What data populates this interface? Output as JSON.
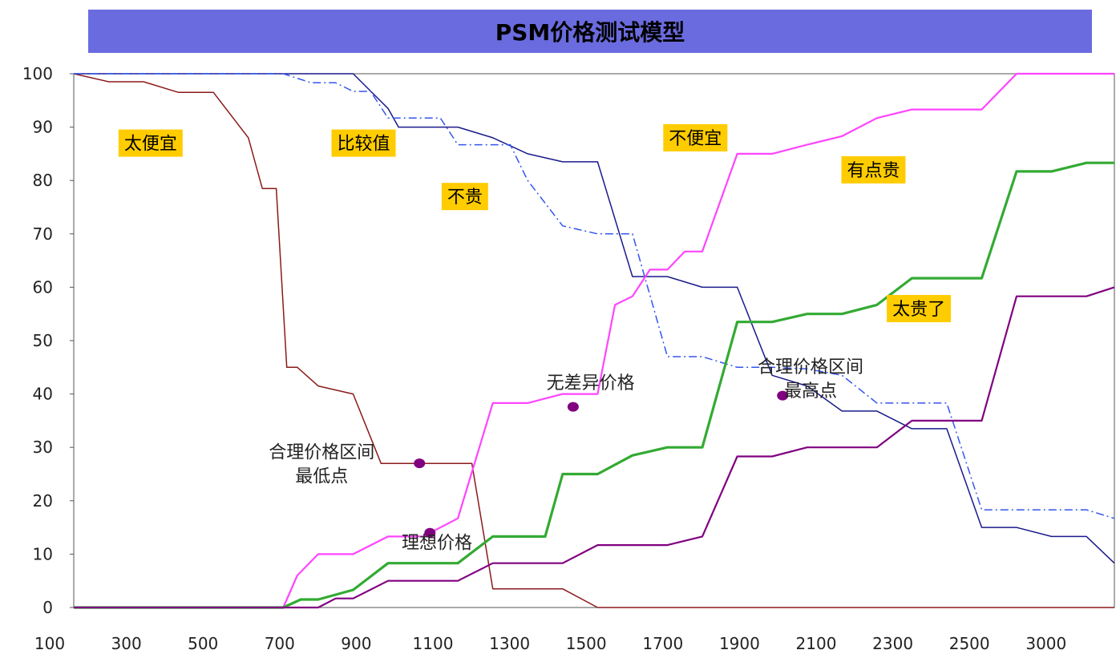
{
  "chart_data": {
    "type": "line",
    "title": "PSM价格测试模型",
    "x_ticks": [
      "100",
      "300",
      "500",
      "700",
      "900",
      "1100",
      "1300",
      "1500",
      "1700",
      "1900",
      "2100",
      "2300",
      "2500",
      "3000"
    ],
    "ylim": [
      0,
      100
    ],
    "y_ticks": [
      0,
      10,
      20,
      30,
      40,
      50,
      60,
      70,
      80,
      90,
      100
    ],
    "colors": {
      "too_cheap": "#8b1a1a",
      "cheap": "#1a1a8c",
      "not_expensive": "#3355ee",
      "not_cheap": "#ff44ff",
      "expensive": "#33aa33",
      "too_expensive": "#800080",
      "marker": "#800080",
      "label_bg": "#ffcc00",
      "title_bg": "#6b6be0"
    },
    "series": [
      {
        "name": "太便宜",
        "key": "too_cheap",
        "style": "solid",
        "width": 1.5,
        "x": [
          0,
          1,
          2,
          3,
          4,
          5,
          5.4,
          5.8,
          6.1,
          6.4,
          7,
          8,
          8.8,
          9.3,
          10,
          11.4,
          12,
          13,
          14,
          15,
          16,
          17,
          18,
          19,
          20,
          21,
          22,
          23,
          24,
          25,
          26,
          27,
          28,
          29,
          29.8
        ],
        "y": [
          100,
          98.5,
          98.5,
          96.5,
          96.5,
          88,
          78.5,
          78.5,
          45,
          45,
          41.5,
          40,
          27,
          27,
          27,
          27,
          3.5,
          3.5,
          3.5,
          0,
          0,
          0,
          0,
          0,
          0,
          0,
          0,
          0,
          0,
          0,
          0,
          0,
          0,
          0,
          0
        ]
      },
      {
        "name": "比较值",
        "key": "cheap",
        "style": "solid",
        "width": 1.5,
        "x": [
          0,
          4,
          5,
          6,
          7,
          8,
          9,
          9.3,
          10,
          10.5,
          11,
          12,
          13,
          14,
          15,
          16,
          17,
          18,
          19,
          20,
          21,
          22,
          23,
          24,
          25,
          26,
          27,
          28,
          29,
          29.8
        ],
        "y": [
          100,
          100,
          100,
          100,
          100,
          100,
          93.5,
          90,
          90,
          90,
          90,
          88,
          85,
          83.5,
          83.5,
          62,
          62,
          60,
          60,
          43.5,
          41.5,
          36.8,
          36.8,
          33.5,
          33.5,
          15,
          15,
          13.3,
          13.3,
          8.3
        ]
      },
      {
        "name": "不贵",
        "key": "not_expensive",
        "style": "dashdot",
        "width": 1.5,
        "x": [
          0,
          5,
          5.8,
          6,
          6.8,
          7.5,
          8,
          8.5,
          9,
          9.3,
          10,
          10.5,
          11,
          11.5,
          12,
          12.5,
          13,
          14,
          15,
          16,
          17,
          18,
          19,
          20,
          21,
          22,
          23,
          24,
          25,
          26,
          27,
          28,
          29,
          29.8
        ],
        "y": [
          100,
          100,
          100,
          100,
          98.3,
          98.3,
          96.7,
          96.7,
          91.7,
          91.7,
          91.7,
          91.7,
          86.7,
          86.7,
          86.7,
          86.7,
          80,
          71.5,
          70,
          70,
          47,
          47,
          45,
          45,
          44.7,
          43.5,
          38.3,
          38.3,
          38.3,
          18.3,
          18.3,
          18.3,
          18.3,
          16.7
        ]
      },
      {
        "name": "不便宜",
        "key": "not_cheap",
        "style": "solid",
        "width": 2.2,
        "x": [
          0,
          4,
          5,
          5.2,
          5.6,
          6,
          6.4,
          7,
          7.5,
          8,
          9,
          10,
          11,
          12,
          13,
          14,
          15,
          15.5,
          16,
          16.5,
          17,
          17.5,
          18,
          19,
          20,
          21,
          22,
          23,
          24,
          25,
          26,
          27,
          28,
          29,
          29.8
        ],
        "y": [
          0,
          0,
          0,
          0,
          0,
          0,
          6,
          10,
          10,
          10,
          13.3,
          13.3,
          16.7,
          38.3,
          38.3,
          40,
          40,
          56.7,
          58.3,
          63.3,
          63.3,
          66.7,
          66.7,
          85,
          85,
          86.7,
          88.3,
          91.7,
          93.3,
          93.3,
          93.3,
          100,
          100,
          100,
          100
        ]
      },
      {
        "name": "有点贵",
        "key": "expensive",
        "style": "solid",
        "width": 3.2,
        "x": [
          0,
          4,
          5,
          6,
          6.5,
          7,
          8,
          9,
          10,
          11,
          12,
          13,
          13.5,
          14,
          15,
          16,
          17,
          18,
          19,
          20,
          21,
          22,
          23,
          24,
          25,
          26,
          27,
          28,
          29,
          29.8
        ],
        "y": [
          0,
          0,
          0,
          0,
          1.5,
          1.5,
          3.3,
          8.3,
          8.3,
          8.3,
          13.3,
          13.3,
          13.3,
          25,
          25,
          28.5,
          30,
          30,
          53.5,
          53.5,
          55,
          55,
          56.7,
          61.7,
          61.7,
          61.7,
          81.7,
          81.7,
          83.3,
          83.3
        ]
      },
      {
        "name": "太贵了",
        "key": "too_expensive",
        "style": "solid",
        "width": 2.2,
        "x": [
          0,
          4,
          5,
          6,
          6.5,
          7,
          7.5,
          8,
          9,
          10,
          11,
          12,
          13,
          14,
          15,
          16,
          17,
          18,
          19,
          20,
          21,
          22,
          23,
          24,
          25,
          26,
          27,
          28,
          29,
          29.8
        ],
        "y": [
          0,
          0,
          0,
          0,
          0,
          0,
          1.7,
          1.7,
          5,
          5,
          5,
          8.3,
          8.3,
          8.3,
          11.7,
          11.7,
          11.7,
          13.3,
          28.3,
          28.3,
          30,
          30,
          30,
          35,
          35,
          35,
          58.3,
          58.3,
          58.3,
          60
        ]
      }
    ],
    "labels": [
      {
        "text": "太便宜",
        "x": 2.2,
        "y": 87
      },
      {
        "text": "比较值",
        "x": 8.3,
        "y": 87
      },
      {
        "text": "不贵",
        "x": 11.2,
        "y": 77
      },
      {
        "text": "不便宜",
        "x": 17.8,
        "y": 88
      },
      {
        "text": "有点贵",
        "x": 22.9,
        "y": 82
      },
      {
        "text": "太贵了",
        "x": 24.2,
        "y": 56
      }
    ],
    "markers": [
      {
        "x": 9.9,
        "y": 27
      },
      {
        "x": 10.2,
        "y": 14
      },
      {
        "x": 14.3,
        "y": 37.6
      },
      {
        "x": 20.3,
        "y": 39.7
      }
    ],
    "annotations": [
      {
        "lines": [
          "合理价格区间",
          "最低点"
        ],
        "x": 7.1,
        "y": 28
      },
      {
        "lines": [
          "理想价格"
        ],
        "x": 10.4,
        "y": 11
      },
      {
        "lines": [
          "无差异价格"
        ],
        "x": 14.8,
        "y": 41
      },
      {
        "lines": [
          "合理价格区间",
          "最高点"
        ],
        "x": 21.1,
        "y": 44
      }
    ]
  }
}
